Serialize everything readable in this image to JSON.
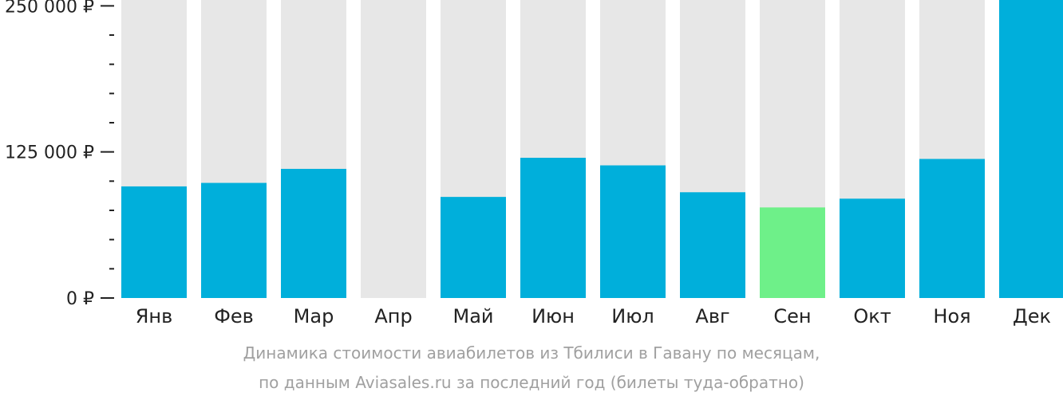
{
  "chart_data": {
    "type": "bar",
    "title": "Динамика стоимости авиабилетов из Тбилиси в Гавану по месяцам,",
    "subtitle": "по данным Aviasales.ru за последний год (билеты туда-обратно)",
    "categories": [
      "Янв",
      "Фев",
      "Мар",
      "Апр",
      "Май",
      "Июн",
      "Июл",
      "Авг",
      "Сен",
      "Окт",
      "Ноя",
      "Дек"
    ],
    "values": [
      95500,
      98500,
      110500,
      null,
      86500,
      120000,
      113500,
      90500,
      77500,
      85000,
      119000,
      255000
    ],
    "highlight_index": 8,
    "ylim": [
      0,
      255000
    ],
    "yticks": [
      0,
      125000,
      250000
    ],
    "ytick_labels": [
      "0 ₽",
      "125 000 ₽",
      "250 000 ₽"
    ],
    "minor_ticks_per_major": 5,
    "colors": {
      "bar": "#00afdb",
      "highlight": "#6ef089",
      "background_column": "#e7e7e7",
      "axis": "#222222",
      "caption": "#a0a0a0"
    },
    "grid": false,
    "legend": "none"
  }
}
